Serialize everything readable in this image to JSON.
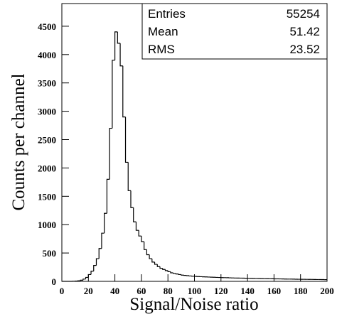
{
  "chart_data": {
    "type": "histogram",
    "xlabel": "Signal/Noise ratio",
    "ylabel": "Counts per channel",
    "bins": [
      0,
      2,
      4,
      6,
      8,
      10,
      12,
      14,
      16,
      18,
      20,
      22,
      24,
      26,
      28,
      30,
      32,
      34,
      36,
      38,
      40,
      42,
      44,
      46,
      48,
      50,
      52,
      54,
      56,
      58,
      60,
      62,
      64,
      66,
      68,
      70,
      72,
      74,
      76,
      78,
      80,
      82,
      84,
      86,
      88,
      90,
      92,
      94,
      96,
      98,
      100,
      102,
      104,
      106,
      108,
      110,
      112,
      114,
      116,
      118,
      120,
      122,
      124,
      126,
      128,
      130,
      132,
      134,
      136,
      138,
      140,
      142,
      144,
      146,
      148,
      150,
      152,
      154,
      156,
      158,
      160,
      162,
      164,
      166,
      168,
      170,
      172,
      174,
      176,
      178,
      180,
      182,
      184,
      186,
      188,
      190,
      192,
      194,
      196,
      198,
      200
    ],
    "counts": [
      0,
      0,
      0,
      0,
      2,
      5,
      10,
      20,
      40,
      70,
      120,
      180,
      280,
      400,
      580,
      850,
      1200,
      1800,
      2700,
      3900,
      4400,
      4200,
      3800,
      2900,
      2100,
      1600,
      1300,
      1050,
      900,
      800,
      700,
      560,
      470,
      400,
      340,
      300,
      260,
      230,
      210,
      190,
      170,
      150,
      140,
      130,
      120,
      110,
      105,
      100,
      95,
      90,
      88,
      85,
      82,
      80,
      78,
      76,
      74,
      72,
      70,
      68,
      66,
      65,
      64,
      62,
      60,
      59,
      58,
      57,
      56,
      55,
      54,
      53,
      52,
      51,
      50,
      49,
      48,
      47,
      46,
      45,
      44,
      44,
      43,
      42,
      41,
      40,
      40,
      39,
      38,
      37,
      36,
      36,
      35,
      34,
      34,
      33,
      32,
      32,
      31,
      30
    ],
    "color": "#000000",
    "xlim": [
      0,
      200
    ],
    "xticks": [
      0,
      20,
      40,
      60,
      80,
      100,
      120,
      140,
      160,
      180,
      200
    ],
    "ylim": [
      0,
      4900
    ],
    "yticks": [
      0,
      500,
      1000,
      1500,
      2000,
      2500,
      3000,
      3500,
      4000,
      4500
    ],
    "stats": [
      {
        "label": "Entries",
        "value": 55254
      },
      {
        "label": "Mean",
        "value": 51.42
      },
      {
        "label": "RMS",
        "value": 23.52
      }
    ]
  }
}
